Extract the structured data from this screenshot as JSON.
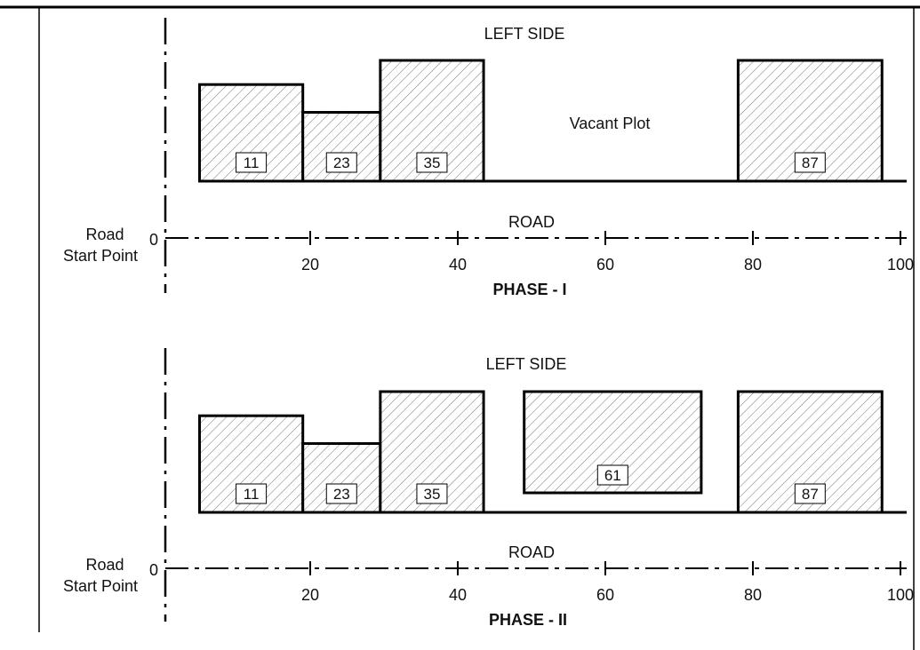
{
  "phases": [
    {
      "title": "PHASE - I",
      "left_side_label": "LEFT SIDE",
      "road_label": "ROAD",
      "origin_label": "0",
      "start_label_line1": "Road",
      "start_label_line2": "Start Point",
      "ticks": [
        "20",
        "40",
        "60",
        "80",
        "100"
      ],
      "vacant_label": "Vacant Plot",
      "plots": [
        {
          "number": "11",
          "x_start": 5,
          "x_end": 19,
          "height": 0.8
        },
        {
          "number": "23",
          "x_start": 19,
          "x_end": 29.5,
          "height": 0.57
        },
        {
          "number": "35",
          "x_start": 29.5,
          "x_end": 43.5,
          "height": 1.0
        },
        {
          "number": "87",
          "x_start": 78,
          "x_end": 97.5,
          "height": 1.0
        }
      ]
    },
    {
      "title": "PHASE - II",
      "left_side_label": "LEFT SIDE",
      "road_label": "ROAD",
      "origin_label": "0",
      "start_label_line1": "Road",
      "start_label_line2": "Start Point",
      "ticks": [
        "20",
        "40",
        "60",
        "80",
        "100"
      ],
      "vacant_label": "",
      "plots": [
        {
          "number": "11",
          "x_start": 5,
          "x_end": 19,
          "height": 0.8
        },
        {
          "number": "23",
          "x_start": 19,
          "x_end": 29.5,
          "height": 0.57
        },
        {
          "number": "35",
          "x_start": 29.5,
          "x_end": 43.5,
          "height": 1.0
        },
        {
          "number": "61",
          "x_start": 49,
          "x_end": 73,
          "height": 1.0,
          "raised": true
        },
        {
          "number": "87",
          "x_start": 78,
          "x_end": 97.5,
          "height": 1.0
        }
      ]
    }
  ]
}
